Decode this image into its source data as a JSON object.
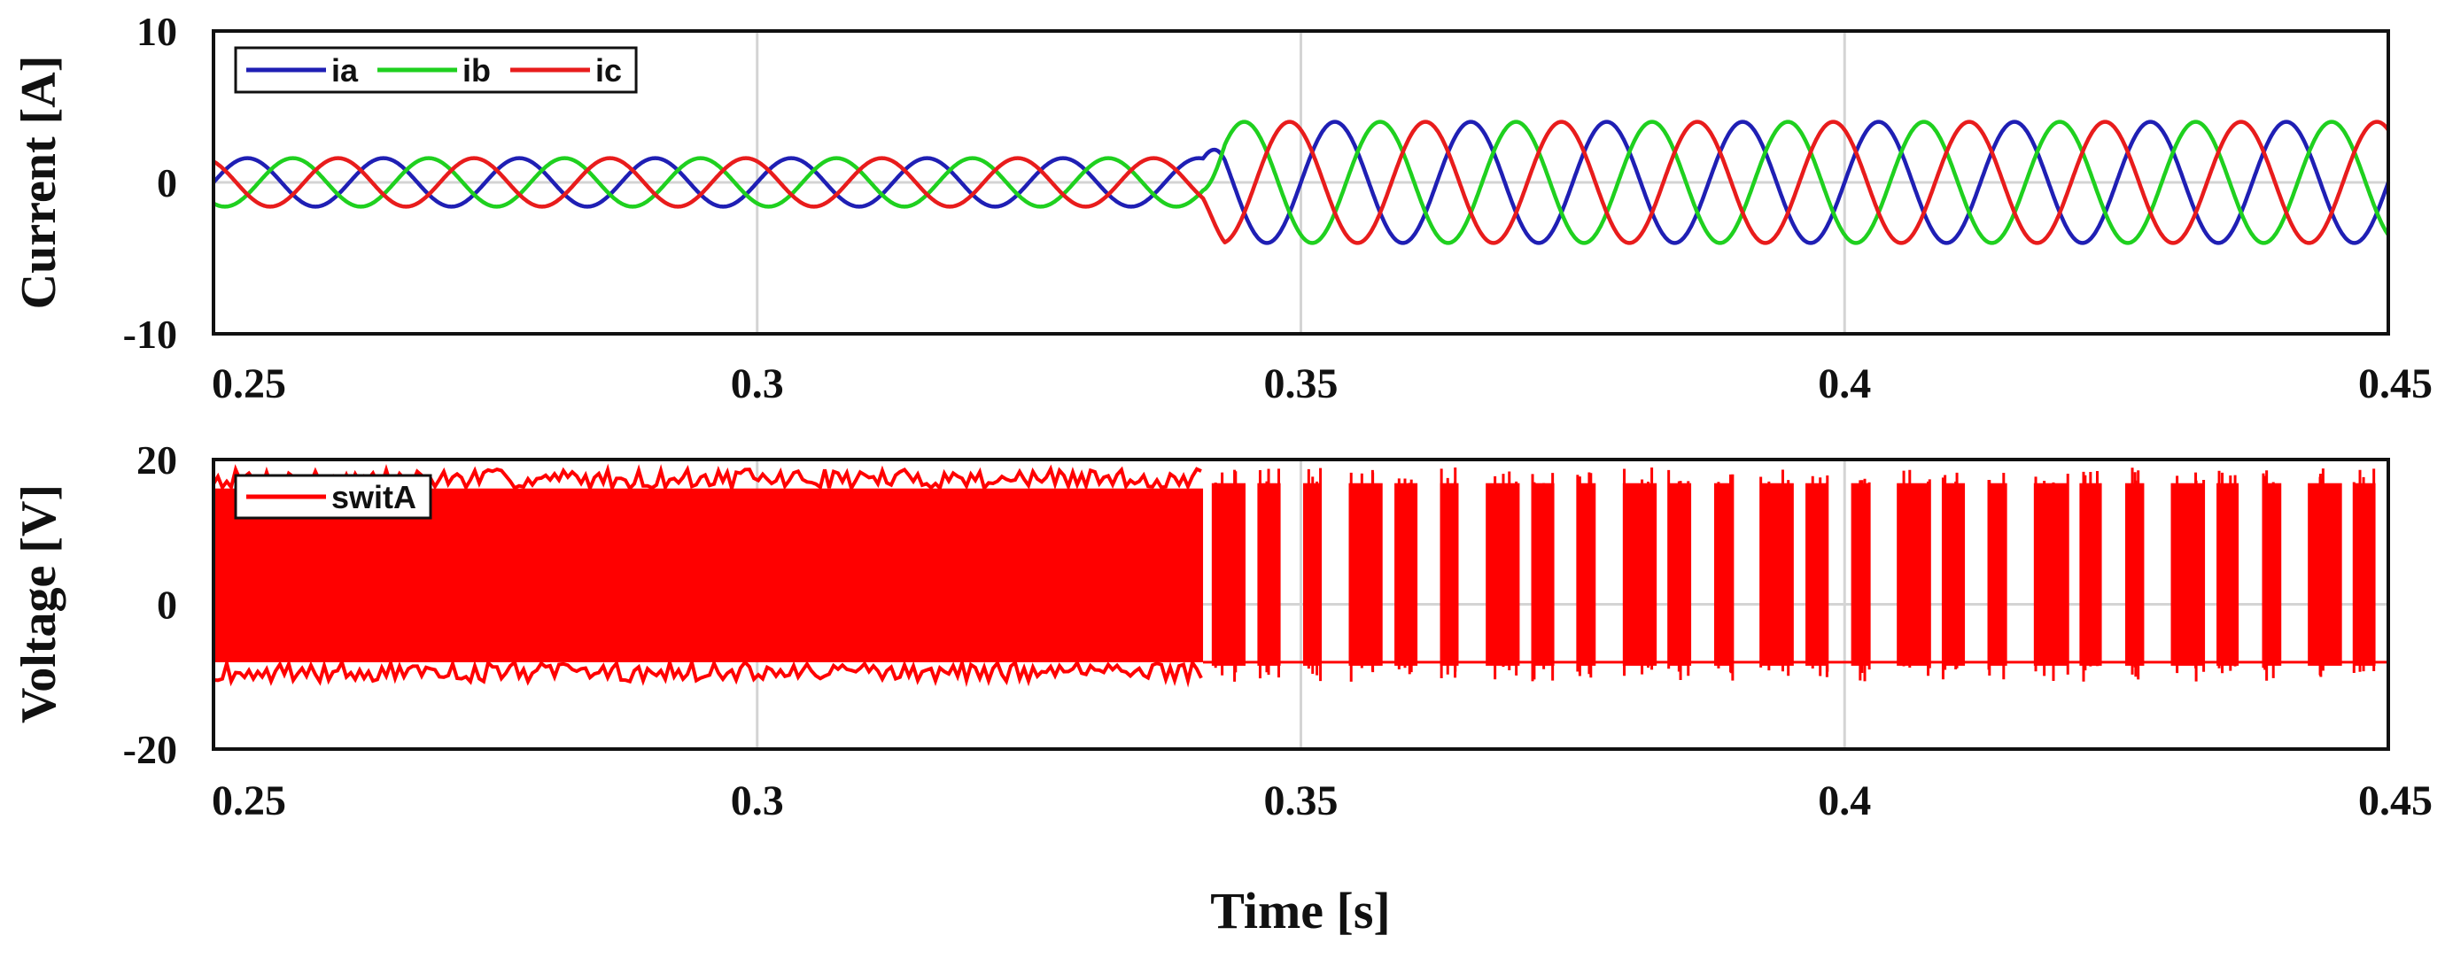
{
  "chart_data": [
    {
      "type": "line",
      "ylabel": "Current [A]",
      "xlabel": "",
      "xlim": [
        0.25,
        0.45
      ],
      "ylim": [
        -10,
        10
      ],
      "x_ticks": [
        "0.25",
        "0.3",
        "0.35",
        "0.4",
        "0.45"
      ],
      "y_ticks": [
        "10",
        "0",
        "-10"
      ],
      "grid": true,
      "legend_position": "top-left",
      "legend_layout": "horizontal",
      "signal": {
        "waveform": "three-phase sinusoid, 120 degrees apart",
        "period_s": 0.0125,
        "step_time_s": 0.341,
        "amplitude_before_A": 1.6,
        "amplitude_after_A": 4.0
      },
      "series": [
        {
          "name": "ia",
          "color": "#1f1fb4",
          "phase_deg": 0
        },
        {
          "name": "ib",
          "color": "#1fd01f",
          "phase_deg": -120
        },
        {
          "name": "ic",
          "color": "#e81c1c",
          "phase_deg": 120
        }
      ]
    },
    {
      "type": "line",
      "ylabel": "Voltage [V]",
      "xlabel": "Time [s]",
      "xlim": [
        0.25,
        0.45
      ],
      "ylim": [
        -20,
        20
      ],
      "x_ticks": [
        "0.25",
        "0.3",
        "0.35",
        "0.4",
        "0.45"
      ],
      "y_ticks": [
        "20",
        "0",
        "-20"
      ],
      "grid": true,
      "legend_position": "top-left",
      "signal": {
        "waveform": "PWM switching voltage",
        "high_level_V": 16,
        "low_level_V": -8,
        "dense_switching_until_s": 0.341,
        "pulse_period_after_s": 0.0042
      },
      "series": [
        {
          "name": "switA",
          "color": "#ff0000"
        }
      ]
    }
  ]
}
